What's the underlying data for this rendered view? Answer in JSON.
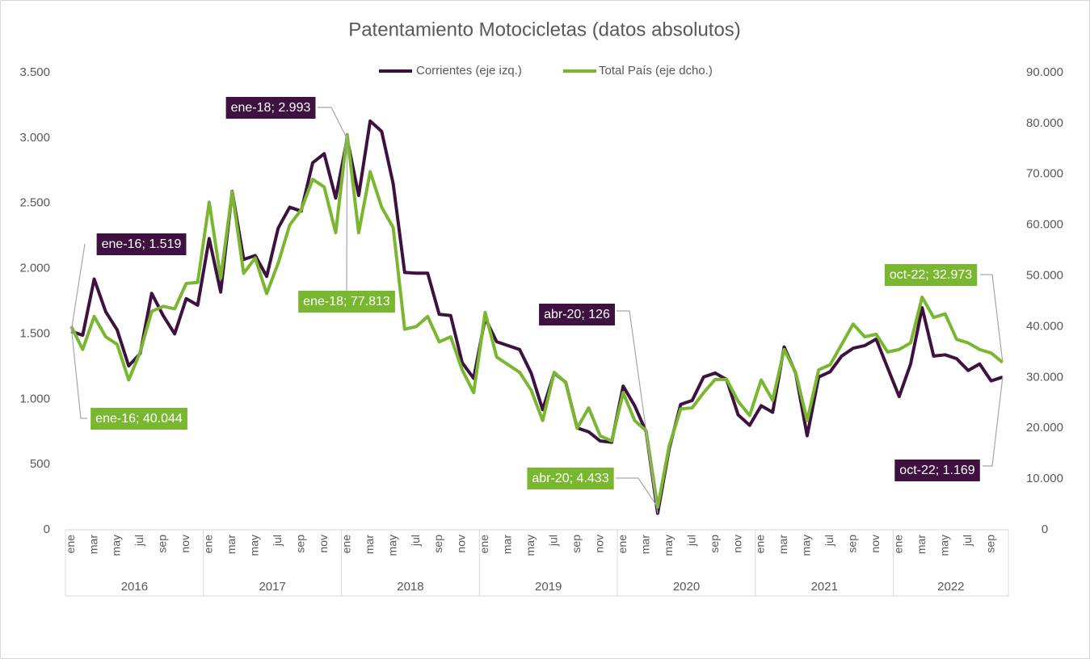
{
  "chart_data": {
    "type": "line",
    "title": "Patentamiento Motocicletas (datos absolutos)",
    "categories": [
      "ene",
      null,
      "mar",
      null,
      "may",
      null,
      "jul",
      null,
      "sep",
      null,
      "nov",
      null,
      "ene",
      null,
      "mar",
      null,
      "may",
      null,
      "jul",
      null,
      "sep",
      null,
      "nov",
      null,
      "ene",
      null,
      "mar",
      null,
      "may",
      null,
      "jul",
      null,
      "sep",
      null,
      "nov",
      null,
      "ene",
      null,
      "mar",
      null,
      "may",
      null,
      "jul",
      null,
      "sep",
      null,
      "nov",
      null,
      "ene",
      null,
      "mar",
      null,
      "may",
      null,
      "jul",
      null,
      "sep",
      null,
      "nov",
      null,
      "ene",
      null,
      "mar",
      null,
      "may",
      null,
      "jul",
      null,
      "sep",
      null,
      "nov",
      null,
      "ene",
      null,
      "mar",
      null,
      "may",
      null,
      "jul",
      null,
      "sep",
      null
    ],
    "year_labels": [
      "2016",
      "2017",
      "2018",
      "2019",
      "2020",
      "2021",
      "2022"
    ],
    "series": [
      {
        "name": "Corrientes (eje izq.)",
        "color": "#3f1140",
        "axis": "y",
        "values": [
          1519,
          1490,
          1920,
          1670,
          1530,
          1255,
          1350,
          1810,
          1640,
          1500,
          1770,
          1720,
          2230,
          1820,
          2590,
          2070,
          2100,
          1940,
          2310,
          2470,
          2440,
          2810,
          2880,
          2540,
          2993,
          2560,
          3130,
          3050,
          2650,
          1970,
          1965,
          1965,
          1650,
          1640,
          1280,
          1160,
          1620,
          1440,
          1410,
          1380,
          1200,
          920,
          1200,
          1130,
          780,
          750,
          680,
          670,
          1100,
          950,
          750,
          126,
          620,
          960,
          990,
          1170,
          1200,
          1150,
          880,
          800,
          950,
          900,
          1400,
          1200,
          720,
          1170,
          1210,
          1330,
          1390,
          1410,
          1460,
          1240,
          1020,
          1270,
          1700,
          1330,
          1340,
          1310,
          1220,
          1270,
          1140,
          1169
        ],
        "value_labels": [
          "ene-16; 1.519",
          null,
          null,
          null,
          null,
          null,
          null,
          null,
          null,
          null,
          null,
          null,
          null,
          null,
          null,
          null,
          null,
          null,
          null,
          null,
          null,
          null,
          null,
          null,
          "ene-18; 2.993",
          null,
          null,
          null,
          null,
          null,
          null,
          null,
          null,
          null,
          null,
          null,
          null,
          null,
          null,
          null,
          null,
          null,
          null,
          null,
          null,
          null,
          null,
          null,
          null,
          null,
          null,
          "abr-20; 126",
          null,
          null,
          null,
          null,
          null,
          null,
          null,
          null,
          null,
          null,
          null,
          null,
          null,
          null,
          null,
          null,
          null,
          null,
          null,
          null,
          null,
          null,
          null,
          null,
          null,
          null,
          null,
          null,
          null,
          "oct-22; 1.169"
        ]
      },
      {
        "name": "Total País (eje dcho.)",
        "color": "#7ab730",
        "axis": "y2",
        "values": [
          40044,
          35500,
          42000,
          38000,
          36500,
          29500,
          35000,
          43000,
          44000,
          43500,
          48500,
          48700,
          64500,
          49500,
          66500,
          50500,
          53500,
          46500,
          52500,
          60000,
          63000,
          69000,
          67500,
          58500,
          77813,
          58500,
          70500,
          63500,
          59500,
          39500,
          40000,
          42000,
          37000,
          38000,
          31500,
          27000,
          42800,
          34000,
          32500,
          31000,
          27500,
          21500,
          31000,
          29000,
          20000,
          24000,
          18500,
          17500,
          27000,
          21500,
          19500,
          4433,
          16500,
          23800,
          24000,
          27000,
          29600,
          29600,
          25300,
          22500,
          29500,
          25500,
          35500,
          31000,
          21500,
          31500,
          32500,
          36500,
          40500,
          38000,
          38500,
          35000,
          35500,
          36800,
          45800,
          41800,
          42500,
          37500,
          36800,
          35500,
          34800,
          32973
        ],
        "value_labels": [
          "ene-16; 40.044",
          null,
          null,
          null,
          null,
          null,
          null,
          null,
          null,
          null,
          null,
          null,
          null,
          null,
          null,
          null,
          null,
          null,
          null,
          null,
          null,
          null,
          null,
          null,
          "ene-18; 77.813",
          null,
          null,
          null,
          null,
          null,
          null,
          null,
          null,
          null,
          null,
          null,
          null,
          null,
          null,
          null,
          null,
          null,
          null,
          null,
          null,
          null,
          null,
          null,
          null,
          null,
          null,
          "abr-20; 4.433",
          null,
          null,
          null,
          null,
          null,
          null,
          null,
          null,
          null,
          null,
          null,
          null,
          null,
          null,
          null,
          null,
          null,
          null,
          null,
          null,
          null,
          null,
          null,
          null,
          null,
          null,
          null,
          null,
          null,
          "oct-22; 32.973"
        ]
      }
    ],
    "ylim": [
      0,
      3500
    ],
    "yticks": [
      0,
      500,
      {
        "value": 1000,
        "label": "1.000"
      },
      {
        "value": 1500,
        "label": "1.500"
      },
      {
        "value": 2000,
        "label": "2.000"
      },
      {
        "value": 2500,
        "label": "2.500"
      },
      {
        "value": 3000,
        "label": "3.000"
      },
      {
        "value": 3500,
        "label": "3.500"
      }
    ],
    "y2lim": [
      0,
      90000
    ],
    "y2ticks": [
      0,
      {
        "value": 10000,
        "label": "10.000"
      },
      {
        "value": 20000,
        "label": "20.000"
      },
      {
        "value": 30000,
        "label": "30.000"
      },
      {
        "value": 40000,
        "label": "40.000"
      },
      {
        "value": 50000,
        "label": "50.000"
      },
      {
        "value": 60000,
        "label": "60.000"
      },
      {
        "value": 70000,
        "label": "70.000"
      },
      {
        "value": 80000,
        "label": "80.000"
      },
      {
        "value": 90000,
        "label": "90.000"
      }
    ],
    "grid": false,
    "legend": "top"
  }
}
